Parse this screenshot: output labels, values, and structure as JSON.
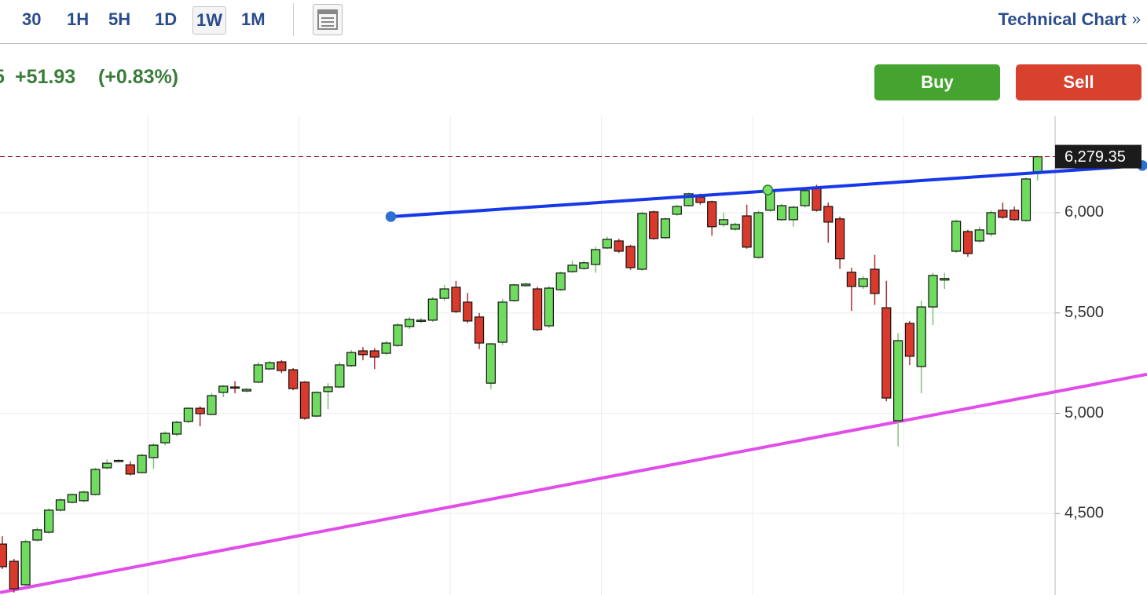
{
  "toolbar": {
    "intervals": [
      "30",
      "1H",
      "5H",
      "1D",
      "1W",
      "1M"
    ],
    "selected_index": 4,
    "link": "Technical Chart",
    "link_arrow": "»"
  },
  "quote": {
    "price_tail": "5",
    "change": "+51.93",
    "change_pct": "(+0.83%)"
  },
  "actions": {
    "buy": "Buy",
    "sell": "Sell"
  },
  "chart_data": {
    "type": "candlestick",
    "up_color": "#6fdc5f",
    "down_color": "#d93a2b",
    "xlim": [
      -0.2,
      90.5
    ],
    "ylim": [
      4094,
      6481
    ],
    "xticks": [
      12.5,
      25.5,
      38.5,
      51.5,
      64.5,
      77.5
    ],
    "yticks": [
      {
        "value": 4500,
        "label": "4,500"
      },
      {
        "value": 5000,
        "label": "5,000"
      },
      {
        "value": 5500,
        "label": "5,500"
      },
      {
        "value": 6000,
        "label": "6,000"
      }
    ],
    "grid": true,
    "open": [
      4348,
      4262,
      4145,
      4368,
      4407,
      4517,
      4556,
      4564,
      4595,
      4728,
      4763,
      4743,
      4704,
      4779,
      4853,
      4896,
      4959,
      5025,
      4994,
      5104,
      5131,
      5111,
      5155,
      5221,
      5256,
      5217,
      5155,
      4986,
      5108,
      5131,
      5237,
      5311,
      5311,
      5299,
      5338,
      5432,
      5460,
      5464,
      5573,
      5628,
      5554,
      5480,
      5150,
      5354,
      5562,
      5636,
      5620,
      5436,
      5616,
      5706,
      5722,
      5742,
      5824,
      5859,
      5832,
      5718,
      6004,
      5875,
      5992,
      6035,
      6078,
      6055,
      5941,
      5918,
      5984,
      5777,
      6012,
      5965,
      5965,
      6035,
      6121,
      6031,
      5969,
      5703,
      5632,
      5718,
      5526,
      4963,
      5448,
      5233,
      5530,
      5664,
      5808,
      5906,
      5859,
      5894,
      6012,
      6012,
      5961,
      6196
    ],
    "high": [
      4387,
      4274,
      4370,
      4430,
      4525,
      4575,
      4600,
      4615,
      4728,
      4770,
      4770,
      4760,
      4798,
      4850,
      4910,
      4963,
      5030,
      5035,
      5100,
      5140,
      5160,
      5125,
      5255,
      5260,
      5265,
      5225,
      5160,
      5110,
      5150,
      5255,
      5315,
      5330,
      5325,
      5360,
      5450,
      5480,
      5475,
      5580,
      5640,
      5660,
      5600,
      5500,
      5350,
      5570,
      5645,
      5650,
      5630,
      5635,
      5705,
      5760,
      5760,
      5830,
      5880,
      5870,
      5840,
      6005,
      6010,
      5975,
      6040,
      6100,
      6095,
      6060,
      6000,
      5950,
      6040,
      6010,
      6120,
      6045,
      6035,
      6120,
      6140,
      6050,
      5980,
      5725,
      5685,
      5790,
      5660,
      5400,
      5460,
      5560,
      5700,
      5700,
      5965,
      5915,
      5930,
      6010,
      6050,
      6030,
      6175,
      6285
    ],
    "low": [
      4223,
      4106,
      4140,
      4360,
      4400,
      4510,
      4550,
      4556,
      4590,
      4720,
      4755,
      4690,
      4700,
      4724,
      4840,
      4885,
      4950,
      4935,
      4990,
      5080,
      5100,
      5105,
      5150,
      5215,
      5200,
      5115,
      4968,
      4980,
      5020,
      5125,
      5230,
      5265,
      5220,
      5290,
      5330,
      5420,
      5450,
      5455,
      5560,
      5500,
      5450,
      5320,
      5120,
      5340,
      5555,
      5630,
      5410,
      5425,
      5610,
      5700,
      5715,
      5700,
      5818,
      5800,
      5715,
      5710,
      5865,
      5870,
      5985,
      6030,
      6040,
      5885,
      5930,
      5910,
      5820,
      5770,
      6005,
      5960,
      5930,
      6025,
      6005,
      5850,
      5720,
      5510,
      5620,
      5540,
      5060,
      4835,
      5240,
      5100,
      5440,
      5620,
      5800,
      5780,
      5850,
      5880,
      5970,
      5960,
      5955,
      6160
    ],
    "close": [
      4235,
      4125,
      4360,
      4419,
      4517,
      4568,
      4595,
      4607,
      4720,
      4751,
      4765,
      4697,
      4790,
      4841,
      4900,
      4955,
      5025,
      4998,
      5088,
      5135,
      5127,
      5119,
      5241,
      5252,
      5213,
      5123,
      4975,
      5104,
      5131,
      5241,
      5303,
      5292,
      5280,
      5350,
      5440,
      5468,
      5464,
      5569,
      5620,
      5507,
      5460,
      5350,
      5346,
      5554,
      5640,
      5644,
      5417,
      5624,
      5699,
      5738,
      5750,
      5816,
      5867,
      5808,
      5726,
      5996,
      5871,
      5969,
      6031,
      6094,
      6051,
      5930,
      5965,
      5941,
      5828,
      6000,
      6113,
      6035,
      6027,
      6110,
      6012,
      5953,
      5770,
      5632,
      5671,
      5597,
      5076,
      5362,
      5284,
      5530,
      5687,
      5672,
      5957,
      5796,
      5914,
      6000,
      5977,
      5965,
      6168,
      6279
    ],
    "last_price": {
      "value": 6279.35,
      "label": "6,279.35"
    },
    "trendlines": [
      {
        "color": "#e04de8",
        "x": [
          -0.2,
          98.4
        ],
        "y": [
          4106,
          5194
        ]
      },
      {
        "color": "#1738e8",
        "x": [
          33.4,
          65.8,
          98.0
        ],
        "y": [
          5980,
          6113,
          6235
        ]
      }
    ]
  }
}
